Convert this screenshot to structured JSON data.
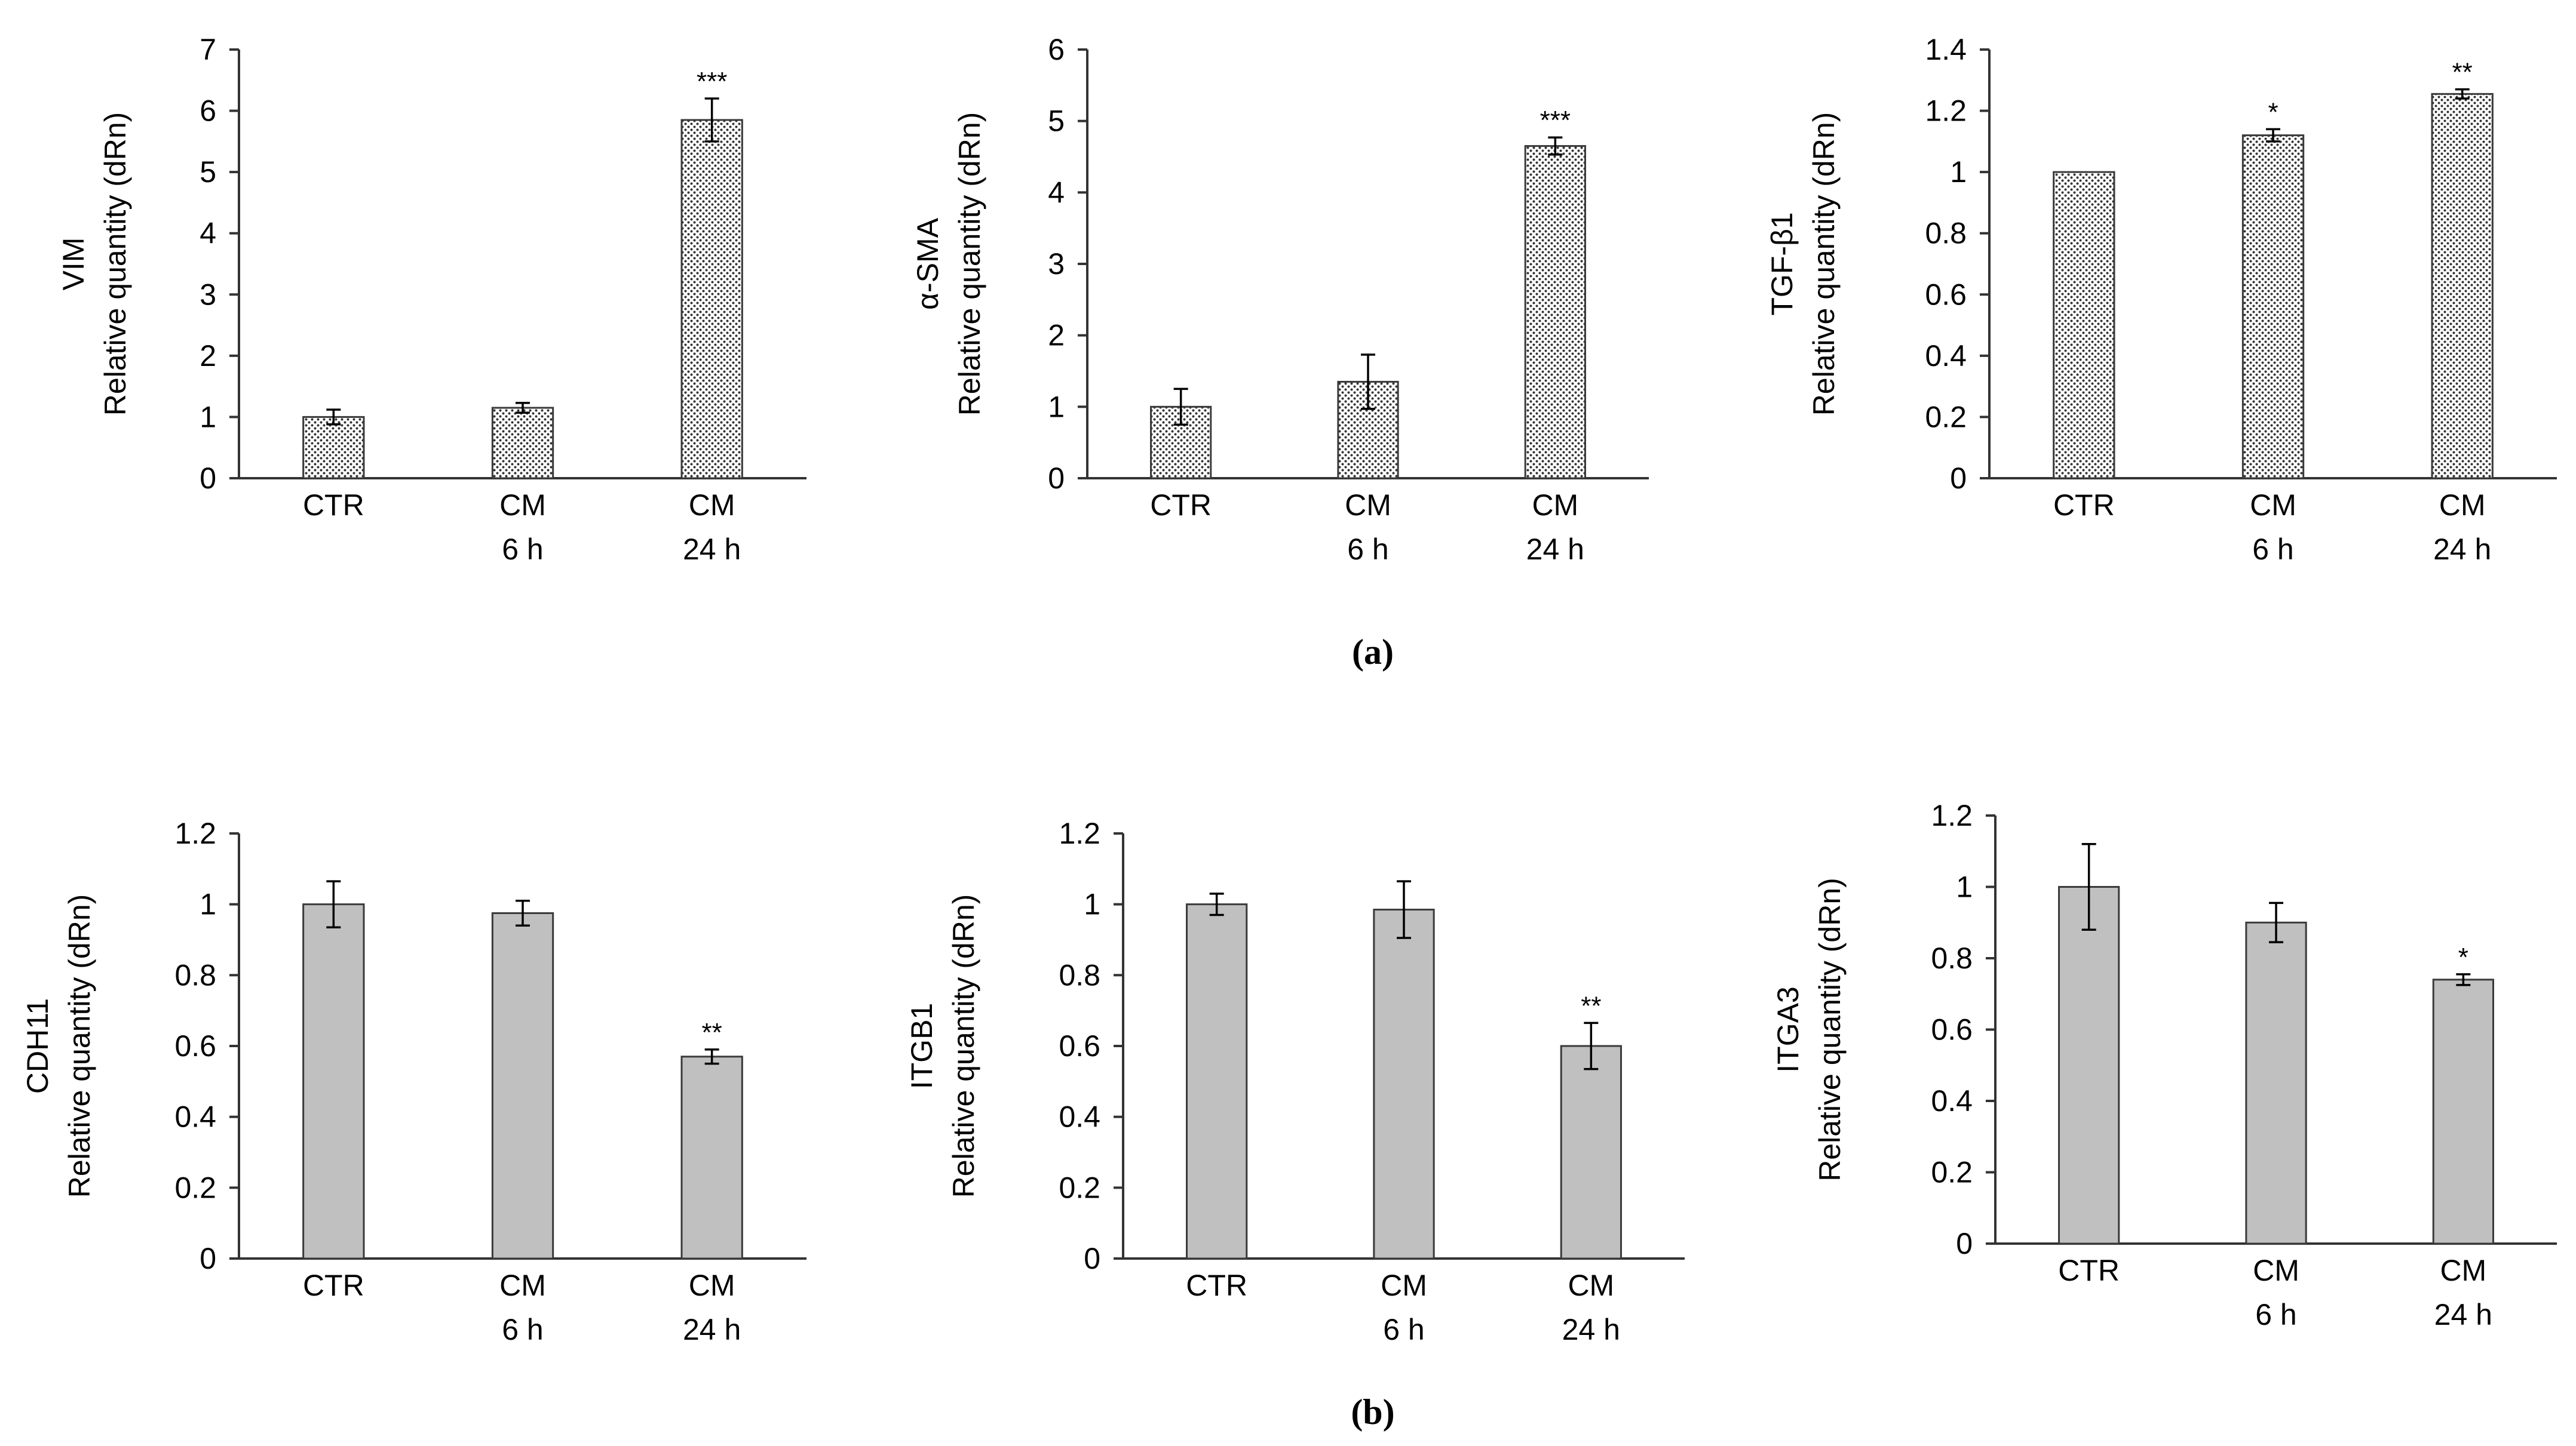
{
  "panels": [
    {
      "label": "(a)"
    },
    {
      "label": "(b)"
    }
  ],
  "colors": {
    "dotted_fill": "#ffffff",
    "dot": "#333333",
    "gray_fill": "#c0c0c0",
    "bar_stroke": "#3a3a3a"
  },
  "chart_data": [
    {
      "type": "bar",
      "panel": "(a)",
      "gene": "VIM",
      "ylabel": "Relative quantity (dRn)",
      "fill": "dotted",
      "ylim": [
        0,
        7
      ],
      "yticks": [
        "0",
        "1",
        "2",
        "3",
        "4",
        "5",
        "6",
        "7"
      ],
      "categories": [
        [
          "CTR"
        ],
        [
          "CM",
          "6 h"
        ],
        [
          "CM",
          "24 h"
        ]
      ],
      "values": [
        1.0,
        1.15,
        5.85
      ],
      "errors": [
        0.12,
        0.08,
        0.35
      ],
      "significance": [
        "",
        "",
        "***"
      ]
    },
    {
      "type": "bar",
      "panel": "(a)",
      "gene": "α-SMA",
      "ylabel": "Relative quantity (dRn)",
      "fill": "dotted",
      "ylim": [
        0,
        6
      ],
      "yticks": [
        "0",
        "1",
        "2",
        "3",
        "4",
        "5",
        "6"
      ],
      "categories": [
        [
          "CTR"
        ],
        [
          "CM",
          "6 h"
        ],
        [
          "CM",
          "24 h"
        ]
      ],
      "values": [
        1.0,
        1.35,
        4.65
      ],
      "errors": [
        0.25,
        0.38,
        0.12
      ],
      "significance": [
        "",
        "",
        "***"
      ]
    },
    {
      "type": "bar",
      "panel": "(a)",
      "gene": "TGF-β1",
      "ylabel": "Relative quantity (dRn)",
      "fill": "dotted",
      "ylim": [
        0,
        1.4
      ],
      "yticks": [
        "0",
        "0.2",
        "0.4",
        "0.6",
        "0.8",
        "1",
        "1.2",
        "1.4"
      ],
      "categories": [
        [
          "CTR"
        ],
        [
          "CM",
          "6 h"
        ],
        [
          "CM",
          "24 h"
        ]
      ],
      "values": [
        1.0,
        1.12,
        1.255
      ],
      "errors": [
        0.0,
        0.02,
        0.015
      ],
      "significance": [
        "",
        "*",
        "**"
      ]
    },
    {
      "type": "bar",
      "panel": "(b)",
      "gene": "CDH11",
      "ylabel": "Relative quantity (dRn)",
      "fill": "gray",
      "ylim": [
        0,
        1.2
      ],
      "yticks": [
        "0",
        "0.2",
        "0.4",
        "0.6",
        "0.8",
        "1",
        "1.2"
      ],
      "categories": [
        [
          "CTR"
        ],
        [
          "CM",
          "6 h"
        ],
        [
          "CM",
          "24 h"
        ]
      ],
      "values": [
        1.0,
        0.975,
        0.57
      ],
      "errors": [
        0.065,
        0.035,
        0.02
      ],
      "significance": [
        "",
        "",
        "**"
      ]
    },
    {
      "type": "bar",
      "panel": "(b)",
      "gene": "ITGB1",
      "ylabel": "Relative quantity (dRn)",
      "fill": "gray",
      "ylim": [
        0,
        1.2
      ],
      "yticks": [
        "0",
        "0.2",
        "0.4",
        "0.6",
        "0.8",
        "1",
        "1.2"
      ],
      "categories": [
        [
          "CTR"
        ],
        [
          "CM",
          "6 h"
        ],
        [
          "CM",
          "24 h"
        ]
      ],
      "values": [
        1.0,
        0.985,
        0.6
      ],
      "errors": [
        0.03,
        0.08,
        0.065
      ],
      "significance": [
        "",
        "",
        "**"
      ]
    },
    {
      "type": "bar",
      "panel": "(b)",
      "gene": "ITGA3",
      "ylabel": "Relative quantity (dRn)",
      "fill": "gray",
      "ylim": [
        0,
        1.2
      ],
      "yticks": [
        "0",
        "0.2",
        "0.4",
        "0.6",
        "0.8",
        "1",
        "1.2"
      ],
      "categories": [
        [
          "CTR"
        ],
        [
          "CM",
          "6 h"
        ],
        [
          "CM",
          "24 h"
        ]
      ],
      "values": [
        1.0,
        0.9,
        0.74
      ],
      "errors": [
        0.12,
        0.055,
        0.015
      ],
      "significance": [
        "",
        "",
        "*"
      ]
    }
  ]
}
